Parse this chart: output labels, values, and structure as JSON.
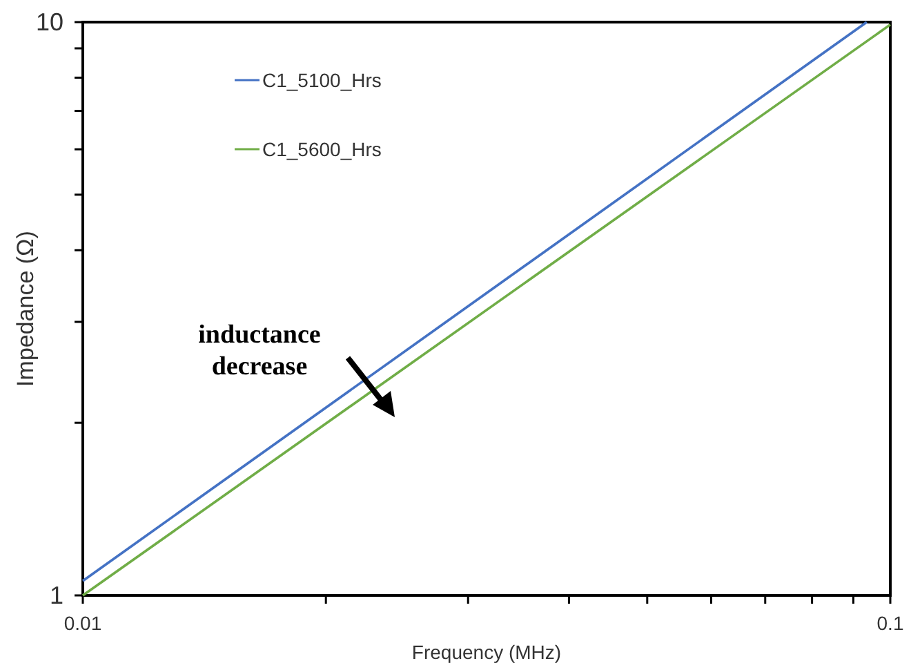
{
  "chart_data": {
    "type": "line",
    "xlabel": "Frequency (MHz)",
    "ylabel": "Impedance (Ω)",
    "log": "xy",
    "grid": false,
    "legend": "top left",
    "marker": "none",
    "line_style": "solid",
    "xlim": [
      0.01,
      0.1
    ],
    "ylim": [
      1,
      10
    ],
    "xticks": [
      0.01,
      {
        "value": 0.02,
        "label": null
      },
      {
        "value": 0.03,
        "label": null
      },
      {
        "value": 0.04,
        "label": null
      },
      {
        "value": 0.05,
        "label": null
      },
      {
        "value": 0.06,
        "label": null
      },
      {
        "value": 0.07,
        "label": null
      },
      {
        "value": 0.08,
        "label": null
      },
      {
        "value": 0.09,
        "label": null
      },
      0.1
    ],
    "yticks": [
      1,
      {
        "value": 2,
        "label": null
      },
      {
        "value": 3,
        "label": null
      },
      {
        "value": 4,
        "label": null
      },
      {
        "value": 5,
        "label": null
      },
      {
        "value": 6,
        "label": null
      },
      {
        "value": 7,
        "label": null
      },
      {
        "value": 8,
        "label": null
      },
      {
        "value": 9,
        "label": null
      },
      10
    ],
    "series": [
      {
        "name": "C1_5100_Hrs",
        "color": "#4472c4",
        "x": [
          0.01,
          0.0935
        ],
        "values": [
          1.06,
          10
        ]
      },
      {
        "name": "C1_5600_Hrs",
        "color": "#70ad47",
        "x": [
          0.01,
          0.1
        ],
        "values": [
          1,
          9.9
        ]
      }
    ],
    "annotations": [
      "inductance decrease"
    ]
  }
}
